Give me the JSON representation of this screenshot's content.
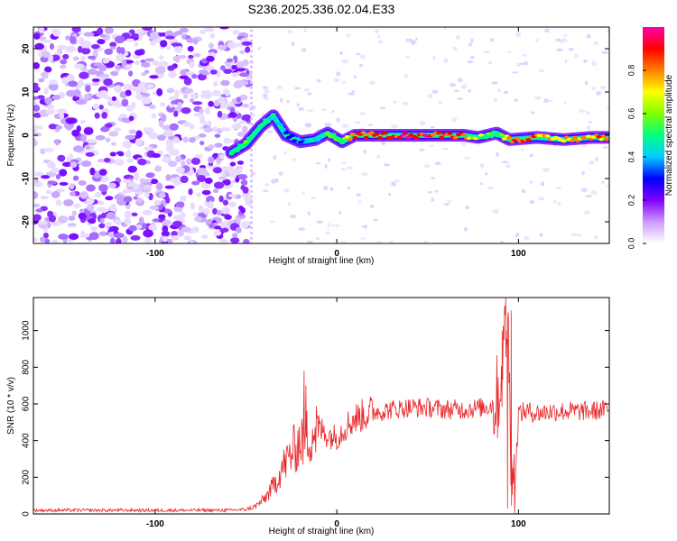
{
  "title": "S236.2025.336.02.04.E33",
  "chart_data": [
    {
      "type": "heatmap",
      "xlabel": "Height of straight line (km)",
      "ylabel": "Frequency (Hz)",
      "xlim": [
        -167,
        150
      ],
      "ylim": [
        -25,
        25
      ],
      "x_ticks": [
        -100,
        0,
        100
      ],
      "y_ticks": [
        -20,
        -10,
        0,
        10,
        20
      ],
      "colorbar": {
        "label": "Normalized spectral amplitude",
        "range": [
          0,
          1
        ],
        "ticks": [
          "0.0",
          "0.2",
          "0.4",
          "0.6",
          "0.8"
        ],
        "colors": [
          "#ffffff",
          "#cc99ff",
          "#8000ff",
          "#0000ff",
          "#00ccff",
          "#00ff80",
          "#80ff00",
          "#ffff00",
          "#ff8000",
          "#ff0000",
          "#ff00aa"
        ]
      },
      "noise_region_x": [
        -167,
        -48
      ],
      "signal_ridge": [
        {
          "x": -58,
          "freq": -4,
          "amp": 0.5
        },
        {
          "x": -50,
          "freq": -2,
          "amp": 0.55
        },
        {
          "x": -42,
          "freq": 2,
          "amp": 0.5
        },
        {
          "x": -35,
          "freq": 4.5,
          "amp": 0.45
        },
        {
          "x": -28,
          "freq": 0,
          "amp": 0.3
        },
        {
          "x": -20,
          "freq": -1.5,
          "amp": 0.35
        },
        {
          "x": -12,
          "freq": -1,
          "amp": 0.4
        },
        {
          "x": -5,
          "freq": 0.5,
          "amp": 0.5
        },
        {
          "x": 3,
          "freq": -1.5,
          "amp": 0.6
        },
        {
          "x": 10,
          "freq": 0,
          "amp": 0.85
        },
        {
          "x": 30,
          "freq": 0,
          "amp": 0.9
        },
        {
          "x": 50,
          "freq": 0,
          "amp": 0.9
        },
        {
          "x": 70,
          "freq": 0,
          "amp": 0.85
        },
        {
          "x": 78,
          "freq": -0.5,
          "amp": 0.6
        },
        {
          "x": 88,
          "freq": 0.5,
          "amp": 0.5
        },
        {
          "x": 95,
          "freq": -1,
          "amp": 0.8
        },
        {
          "x": 110,
          "freq": -0.5,
          "amp": 0.8
        },
        {
          "x": 125,
          "freq": -1,
          "amp": 0.75
        },
        {
          "x": 140,
          "freq": -0.5,
          "amp": 0.8
        },
        {
          "x": 150,
          "freq": -0.5,
          "amp": 0.8
        }
      ]
    },
    {
      "type": "line",
      "xlabel": "Height of straight line (km)",
      "ylabel": "SNR (10 * v/v)",
      "xlim": [
        -167,
        150
      ],
      "ylim": [
        0,
        1180
      ],
      "x_ticks": [
        -100,
        0,
        100
      ],
      "y_ticks": [
        0,
        200,
        400,
        600,
        800,
        1000
      ],
      "color": "#e8282a",
      "series": [
        {
          "x": [
            -167,
            -100,
            -60,
            -50,
            -45,
            -40,
            -35,
            -30,
            -25,
            -20,
            -15,
            -10,
            -5,
            0,
            5,
            10,
            15,
            20,
            25,
            30,
            40,
            50,
            60,
            70,
            80,
            85,
            88,
            90,
            92,
            94,
            96,
            98,
            100,
            105,
            110,
            120,
            130,
            140,
            150
          ],
          "y": [
            20,
            20,
            20,
            25,
            40,
            80,
            150,
            250,
            330,
            400,
            430,
            470,
            430,
            420,
            480,
            520,
            540,
            560,
            560,
            570,
            580,
            580,
            570,
            570,
            580,
            590,
            620,
            700,
            900,
            1100,
            300,
            150,
            550,
            560,
            550,
            560,
            560,
            560,
            570
          ]
        }
      ],
      "spike_peaks": [
        {
          "x": -18,
          "y": 780
        },
        {
          "x": -17,
          "y": 700
        },
        {
          "x": 91,
          "y": 1000
        },
        {
          "x": 93,
          "y": 1180
        },
        {
          "x": 96,
          "y": 1110
        },
        {
          "x": 94,
          "y": 30
        }
      ]
    }
  ]
}
